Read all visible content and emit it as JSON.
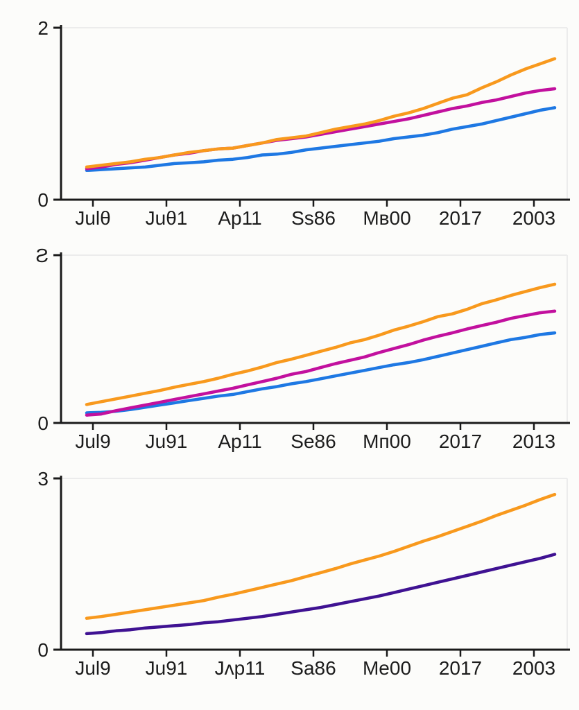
{
  "palette": {
    "axis": "#1a1a1a",
    "grid": "#ececec",
    "tick_label": "#1c1c1c",
    "orange": "#F8991D",
    "magenta": "#C2109E",
    "blue": "#1E78E3",
    "purple": "#3F1292"
  },
  "chart_data": [
    {
      "type": "line",
      "title": "",
      "xlabel": "",
      "ylabel": "",
      "grid": "off",
      "legend": "none",
      "ylim": [
        0,
        2
      ],
      "ytick_values": [
        0,
        2
      ],
      "ytick_labels": [
        "0",
        "2"
      ],
      "x_labels": [
        "Julθ",
        "Juθ1",
        "Ap11",
        "Ss86",
        "Mв00",
        "2017",
        "2003"
      ],
      "series": [
        {
          "name": "orange",
          "color": "#F8991D",
          "values": [
            0.38,
            0.4,
            0.42,
            0.44,
            0.47,
            0.49,
            0.52,
            0.55,
            0.57,
            0.59,
            0.6,
            0.63,
            0.66,
            0.7,
            0.72,
            0.74,
            0.78,
            0.82,
            0.85,
            0.88,
            0.92,
            0.97,
            1.01,
            1.06,
            1.12,
            1.18,
            1.22,
            1.3,
            1.37,
            1.45,
            1.52,
            1.58,
            1.64
          ]
        },
        {
          "name": "magenta",
          "color": "#C2109E",
          "values": [
            0.36,
            0.38,
            0.41,
            0.43,
            0.46,
            0.49,
            0.52,
            0.54,
            0.57,
            0.59,
            0.6,
            0.63,
            0.66,
            0.69,
            0.71,
            0.73,
            0.76,
            0.79,
            0.82,
            0.85,
            0.88,
            0.91,
            0.94,
            0.98,
            1.02,
            1.06,
            1.09,
            1.13,
            1.16,
            1.2,
            1.24,
            1.27,
            1.29
          ]
        },
        {
          "name": "blue",
          "color": "#1E78E3",
          "values": [
            0.34,
            0.35,
            0.36,
            0.37,
            0.38,
            0.4,
            0.42,
            0.43,
            0.44,
            0.46,
            0.47,
            0.49,
            0.52,
            0.53,
            0.55,
            0.58,
            0.6,
            0.62,
            0.64,
            0.66,
            0.68,
            0.71,
            0.73,
            0.75,
            0.78,
            0.82,
            0.85,
            0.88,
            0.92,
            0.96,
            1.0,
            1.04,
            1.07
          ]
        }
      ]
    },
    {
      "type": "line",
      "title": "",
      "xlabel": "",
      "ylabel": "",
      "grid": "off",
      "legend": "none",
      "ylim": [
        0,
        3
      ],
      "ytick_values": [
        0,
        3
      ],
      "ytick_labels": [
        "0",
        "Ƨ"
      ],
      "x_labels": [
        "Jul9",
        "Ju91",
        "Ap11",
        "Se86",
        "Mп00",
        "2017",
        "2013"
      ],
      "series": [
        {
          "name": "orange",
          "color": "#F8991D",
          "values": [
            0.33,
            0.38,
            0.43,
            0.48,
            0.53,
            0.58,
            0.64,
            0.69,
            0.74,
            0.8,
            0.87,
            0.93,
            1.0,
            1.08,
            1.14,
            1.21,
            1.28,
            1.35,
            1.43,
            1.49,
            1.57,
            1.66,
            1.73,
            1.81,
            1.9,
            1.95,
            2.03,
            2.13,
            2.2,
            2.28,
            2.35,
            2.42,
            2.48
          ]
        },
        {
          "name": "magenta",
          "color": "#C2109E",
          "values": [
            0.14,
            0.16,
            0.22,
            0.27,
            0.32,
            0.37,
            0.42,
            0.47,
            0.52,
            0.57,
            0.62,
            0.68,
            0.74,
            0.8,
            0.87,
            0.92,
            0.99,
            1.06,
            1.12,
            1.18,
            1.26,
            1.33,
            1.4,
            1.48,
            1.55,
            1.61,
            1.68,
            1.74,
            1.8,
            1.87,
            1.92,
            1.97,
            2.0
          ]
        },
        {
          "name": "blue",
          "color": "#1E78E3",
          "values": [
            0.18,
            0.19,
            0.21,
            0.24,
            0.28,
            0.32,
            0.36,
            0.4,
            0.44,
            0.48,
            0.51,
            0.56,
            0.61,
            0.65,
            0.7,
            0.74,
            0.79,
            0.84,
            0.89,
            0.94,
            0.99,
            1.04,
            1.08,
            1.13,
            1.19,
            1.25,
            1.31,
            1.37,
            1.43,
            1.49,
            1.53,
            1.58,
            1.61
          ]
        }
      ]
    },
    {
      "type": "line",
      "title": "",
      "xlabel": "",
      "ylabel": "",
      "grid": "off",
      "legend": "none",
      "ylim": [
        0,
        3
      ],
      "ytick_values": [
        0,
        3
      ],
      "ytick_labels": [
        "0",
        "3"
      ],
      "x_labels": [
        "Jul9",
        "Ju91",
        "Jʌp11",
        "Sa86",
        "Me00",
        "2017",
        "2003"
      ],
      "series": [
        {
          "name": "orange",
          "color": "#F8991D",
          "values": [
            0.55,
            0.58,
            0.62,
            0.66,
            0.7,
            0.74,
            0.78,
            0.82,
            0.86,
            0.92,
            0.97,
            1.03,
            1.09,
            1.15,
            1.21,
            1.28,
            1.35,
            1.42,
            1.5,
            1.57,
            1.64,
            1.72,
            1.81,
            1.9,
            1.98,
            2.07,
            2.16,
            2.25,
            2.35,
            2.44,
            2.53,
            2.63,
            2.72
          ]
        },
        {
          "name": "purple",
          "color": "#3F1292",
          "values": [
            0.28,
            0.3,
            0.33,
            0.35,
            0.38,
            0.4,
            0.42,
            0.44,
            0.47,
            0.49,
            0.52,
            0.55,
            0.58,
            0.62,
            0.66,
            0.7,
            0.74,
            0.79,
            0.84,
            0.89,
            0.94,
            1.0,
            1.06,
            1.12,
            1.18,
            1.24,
            1.3,
            1.36,
            1.42,
            1.48,
            1.54,
            1.6,
            1.67
          ]
        }
      ]
    }
  ]
}
